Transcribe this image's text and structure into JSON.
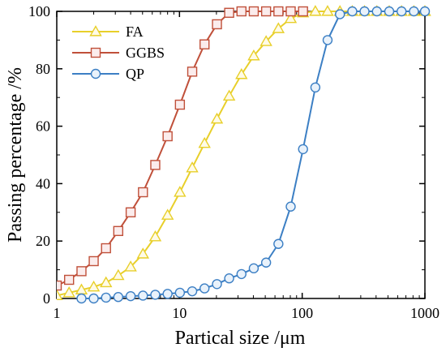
{
  "chart_data": {
    "type": "line",
    "title": "",
    "xlabel": "Partical size /μm",
    "ylabel": "Passing percentage /%",
    "x_scale": "log",
    "xlim": [
      1,
      1000
    ],
    "ylim": [
      0,
      100
    ],
    "x_ticks": [
      1,
      10,
      100,
      1000
    ],
    "x_tick_labels": [
      "1",
      "10",
      "100",
      "1000"
    ],
    "y_ticks": [
      0,
      20,
      40,
      60,
      80,
      100
    ],
    "y_tick_labels": [
      "0",
      "20",
      "40",
      "60",
      "80",
      "100"
    ],
    "grid": false,
    "legend_position": "top-left",
    "series": [
      {
        "name": "FA",
        "color": "#e8cf2a",
        "marker": "triangle",
        "x": [
          1,
          1.26,
          1.59,
          2.0,
          2.52,
          3.17,
          4.0,
          5.04,
          6.35,
          8.0,
          10.08,
          12.7,
          16.0,
          20.2,
          25.4,
          32.0,
          40.3,
          50.8,
          64.0,
          80.6,
          101.6,
          128,
          161,
          203,
          256,
          322,
          406,
          512,
          645,
          813,
          1000
        ],
        "y": [
          1,
          2,
          3,
          4,
          5.5,
          8,
          11,
          15.5,
          21.5,
          29,
          37,
          45.5,
          54,
          62.5,
          70.5,
          78,
          84.5,
          89.5,
          94,
          97.5,
          99.5,
          100,
          100,
          100,
          100,
          100,
          100,
          100,
          100,
          100,
          100
        ]
      },
      {
        "name": "GGBS",
        "color": "#c0503a",
        "marker": "square",
        "x": [
          1,
          1.26,
          1.59,
          2.0,
          2.52,
          3.17,
          4.0,
          5.04,
          6.35,
          8.0,
          10.08,
          12.7,
          16.0,
          20.2,
          25.4,
          32.0,
          40.3,
          50.8,
          64.0,
          80.6,
          101.6
        ],
        "y": [
          4.5,
          6.5,
          9.5,
          13,
          17.5,
          23.5,
          30,
          37,
          46.5,
          56.5,
          67.5,
          79,
          88.5,
          95.5,
          99.5,
          100,
          100,
          100,
          100,
          100,
          100
        ]
      },
      {
        "name": "QP",
        "color": "#3c7fc4",
        "marker": "circle",
        "x": [
          1.59,
          2.0,
          2.52,
          3.17,
          4.0,
          5.04,
          6.35,
          8.0,
          10.08,
          12.7,
          16.0,
          20.2,
          25.4,
          32.0,
          40.3,
          50.8,
          64.0,
          80.6,
          101.6,
          128,
          161,
          203,
          256,
          322,
          406,
          512,
          645,
          813,
          1000
        ],
        "y": [
          0,
          0,
          0.3,
          0.5,
          0.8,
          1,
          1.3,
          1.6,
          2,
          2.5,
          3.5,
          5,
          7,
          8.5,
          10.5,
          12.5,
          19,
          32,
          52,
          73.5,
          90,
          99,
          100,
          100,
          100,
          100,
          100,
          100,
          100
        ]
      }
    ]
  }
}
